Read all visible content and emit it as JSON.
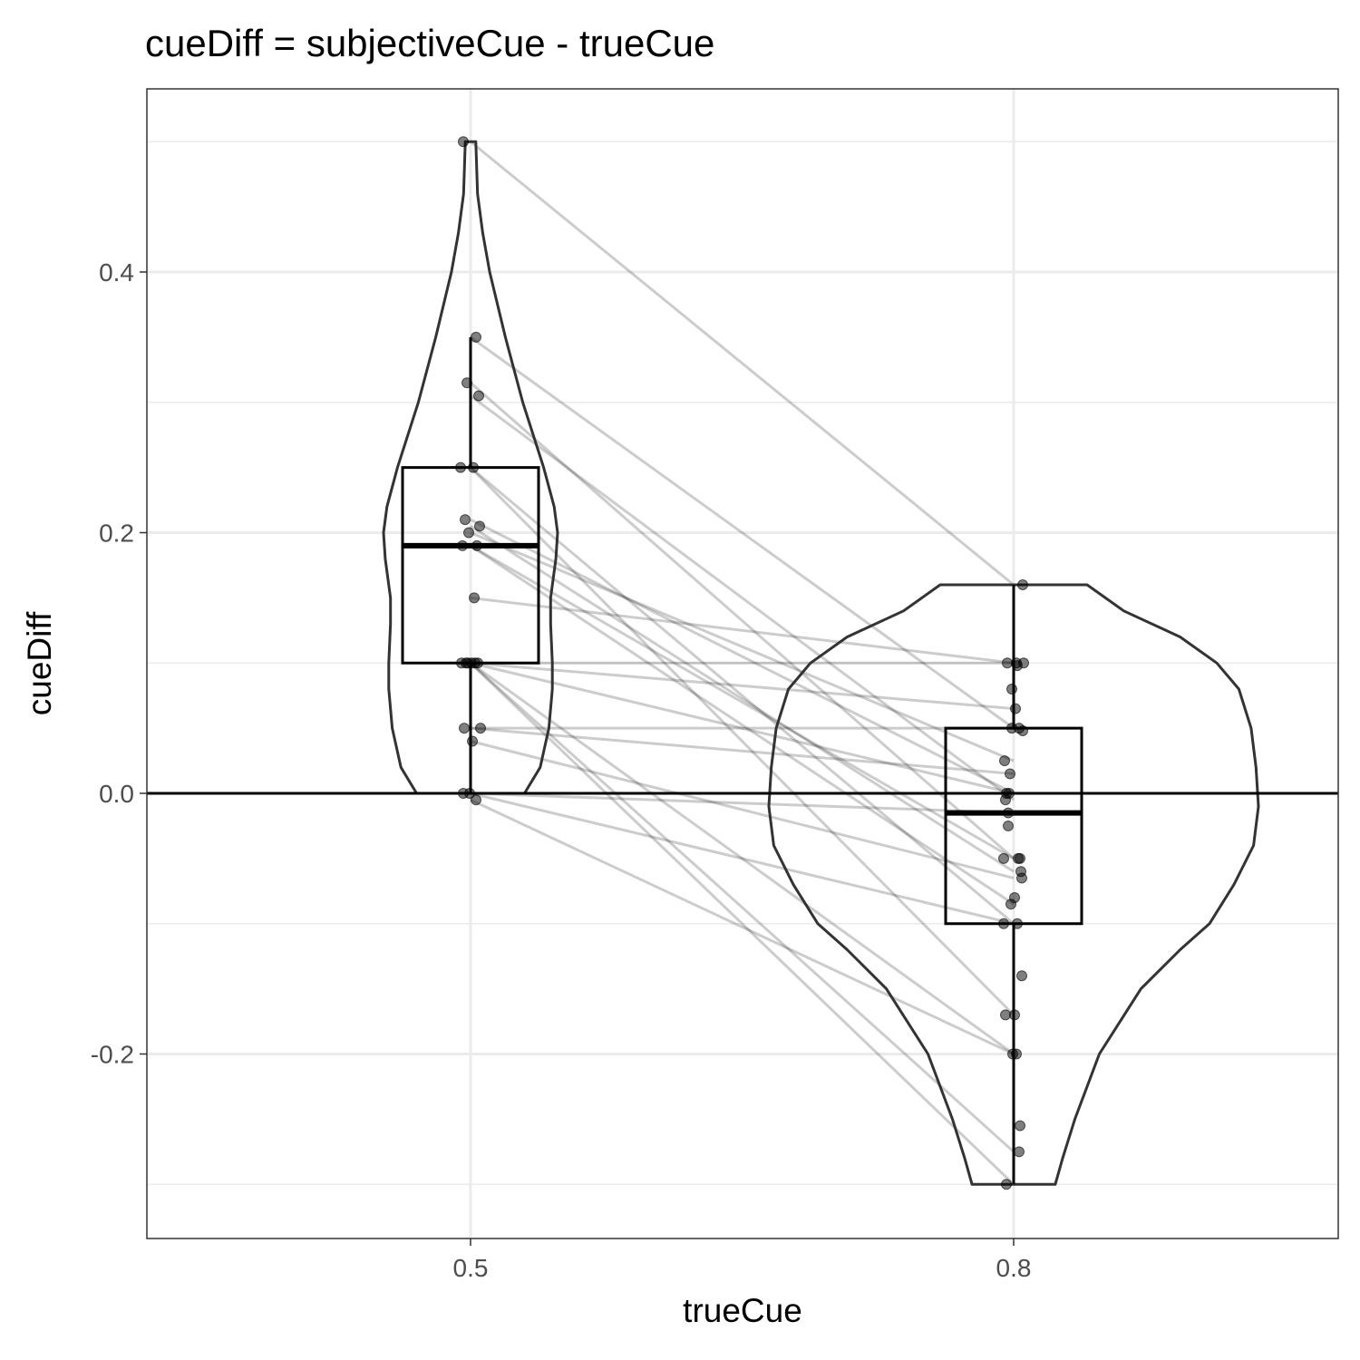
{
  "chart_data": {
    "type": "violin",
    "title": "cueDiff = subjectiveCue - trueCue",
    "xlabel": "trueCue",
    "ylabel": "cueDiff",
    "categories": [
      "0.5",
      "0.8"
    ],
    "y_ticks": [
      "-0.2",
      "0.0",
      "0.2",
      "0.4"
    ],
    "ylim": [
      -0.34,
      0.54
    ],
    "grid": true,
    "reference_line_y": 0,
    "boxplots": [
      {
        "category": "0.5",
        "lower_whisker": 0.0,
        "q1": 0.1,
        "median": 0.19,
        "q3": 0.25,
        "upper_whisker": 0.35
      },
      {
        "category": "0.8",
        "lower_whisker": -0.3,
        "q1": -0.1,
        "median": -0.015,
        "q3": 0.05,
        "upper_whisker": 0.16
      }
    ],
    "violins": [
      {
        "category": "0.5",
        "y_range": [
          0.0,
          0.5
        ],
        "density_profile": [
          [
            0.0,
            0.31
          ],
          [
            0.02,
            0.4
          ],
          [
            0.05,
            0.45
          ],
          [
            0.08,
            0.47
          ],
          [
            0.1,
            0.47
          ],
          [
            0.13,
            0.46
          ],
          [
            0.15,
            0.46
          ],
          [
            0.18,
            0.49
          ],
          [
            0.2,
            0.5
          ],
          [
            0.22,
            0.48
          ],
          [
            0.25,
            0.42
          ],
          [
            0.3,
            0.3
          ],
          [
            0.35,
            0.2
          ],
          [
            0.4,
            0.11
          ],
          [
            0.43,
            0.07
          ],
          [
            0.46,
            0.04
          ],
          [
            0.5,
            0.03
          ]
        ]
      },
      {
        "category": "0.8",
        "y_range": [
          -0.3,
          0.16
        ],
        "density_profile": [
          [
            -0.3,
            0.17
          ],
          [
            -0.28,
            0.2
          ],
          [
            -0.25,
            0.25
          ],
          [
            -0.2,
            0.35
          ],
          [
            -0.15,
            0.52
          ],
          [
            -0.12,
            0.68
          ],
          [
            -0.1,
            0.8
          ],
          [
            -0.07,
            0.9
          ],
          [
            -0.04,
            0.98
          ],
          [
            -0.01,
            1.0
          ],
          [
            0.02,
            0.99
          ],
          [
            0.05,
            0.97
          ],
          [
            0.08,
            0.92
          ],
          [
            0.1,
            0.83
          ],
          [
            0.12,
            0.68
          ],
          [
            0.14,
            0.45
          ],
          [
            0.16,
            0.3
          ]
        ]
      }
    ],
    "paired_points": [
      [
        0.5,
        0.16
      ],
      [
        0.35,
        0.05
      ],
      [
        0.315,
        -0.05
      ],
      [
        0.305,
        -0.005
      ],
      [
        0.25,
        -0.1
      ],
      [
        0.25,
        -0.17
      ],
      [
        0.21,
        0.0
      ],
      [
        0.205,
        -0.06
      ],
      [
        0.2,
        0.025
      ],
      [
        0.19,
        -0.05
      ],
      [
        0.19,
        -0.085
      ],
      [
        0.15,
        0.1
      ],
      [
        0.1,
        0.1
      ],
      [
        0.1,
        0.065
      ],
      [
        0.1,
        -0.2
      ],
      [
        0.1,
        -0.275
      ],
      [
        0.1,
        -0.3
      ],
      [
        0.1,
        0.0
      ],
      [
        0.05,
        0.05
      ],
      [
        0.05,
        0.015
      ],
      [
        0.04,
        -0.065
      ],
      [
        0.0,
        -0.1
      ],
      [
        -0.005,
        -0.2
      ],
      [
        0.0,
        -0.015
      ]
    ],
    "extra_points_08": [
      -0.14,
      -0.05,
      0.1,
      -0.025,
      0.048,
      0.08,
      -0.255,
      -0.17,
      0.098,
      -0.08
    ]
  }
}
